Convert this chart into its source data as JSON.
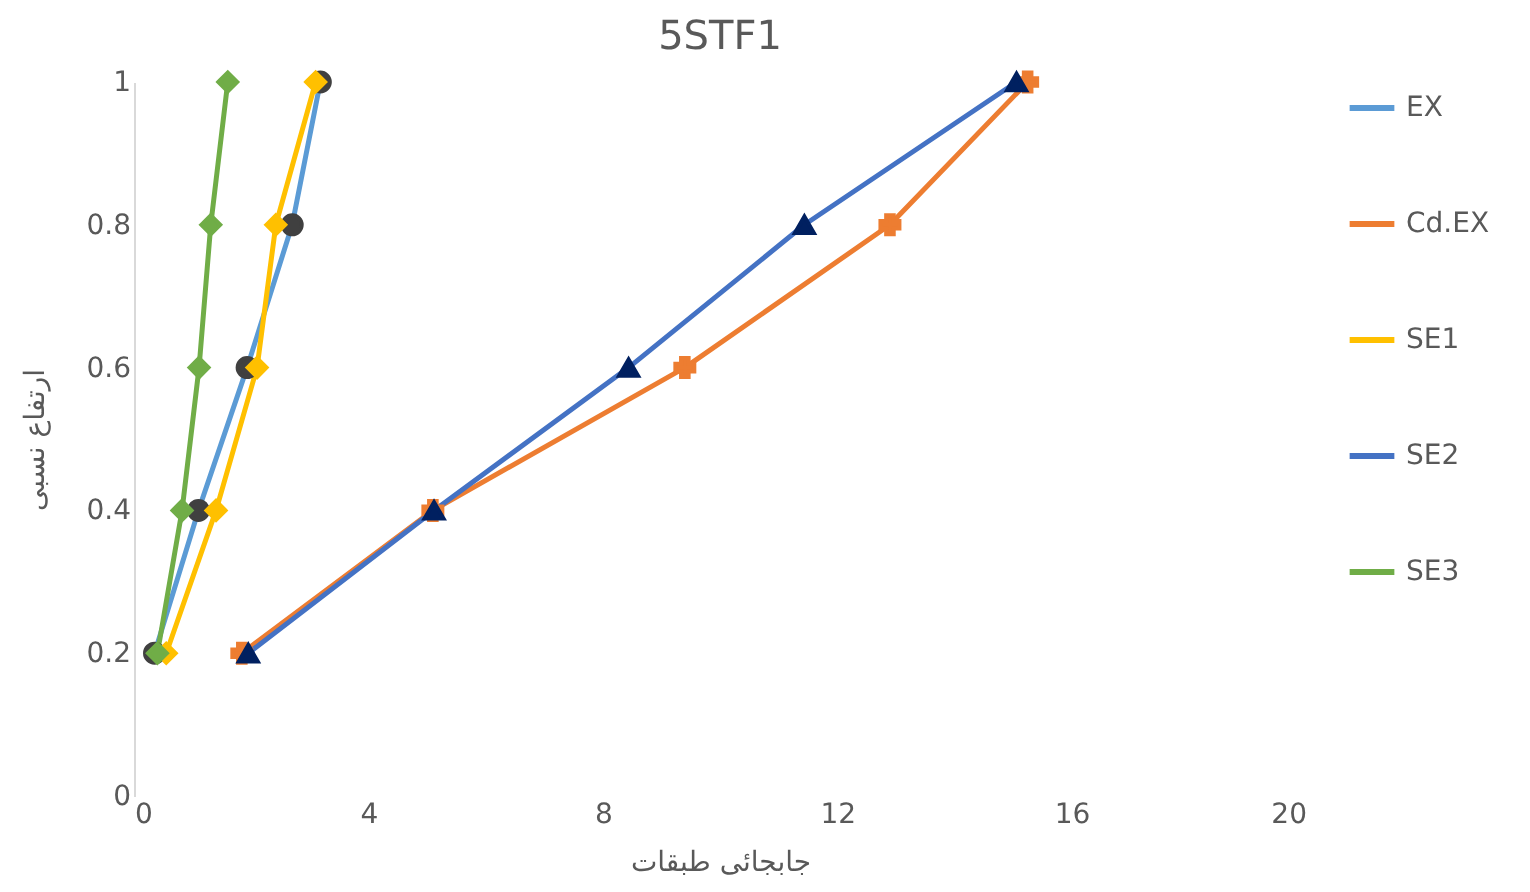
{
  "chart_data": {
    "type": "line",
    "title": "5STF1",
    "xlabel": "جابجائی طبقات",
    "ylabel": "ارتفاع نسبی",
    "xlim": [
      0,
      20
    ],
    "xticks": [
      0,
      4,
      8,
      12,
      16,
      20
    ],
    "ylim": [
      0,
      1
    ],
    "yticks": [
      0,
      0.2,
      0.4,
      0.6,
      0.8,
      1
    ],
    "grid": false,
    "legend": "right",
    "line_style": "solid",
    "series": [
      {
        "name": "EX",
        "color": "#5b9bd5",
        "marker": "circle",
        "colors": [
          "#404040",
          "#404040",
          "#404040",
          "#404040",
          "#404040"
        ],
        "x": [
          0.35,
          1.1,
          1.93,
          2.7,
          3.18
        ],
        "values": [
          0.2,
          0.4,
          0.6,
          0.8,
          1
        ]
      },
      {
        "name": "Cd.EX",
        "color": "#ed7d31",
        "marker": "cross",
        "x": [
          1.84,
          5.1,
          9.4,
          12.9,
          15.25
        ],
        "values": [
          0.2,
          0.4,
          0.6,
          0.8,
          1
        ]
      },
      {
        "name": "SE1",
        "color": "#ffc000",
        "marker": "diamond",
        "x": [
          0.55,
          1.4,
          2.1,
          2.42,
          3.1
        ],
        "values": [
          0.2,
          0.4,
          0.6,
          0.8,
          1
        ]
      },
      {
        "name": "SE2",
        "color": "#4472c4",
        "marker": "triangle",
        "colors": [
          "#002060",
          "#002060",
          "#002060",
          "#002060",
          "#002060"
        ],
        "x": [
          1.95,
          5.12,
          8.44,
          11.44,
          15.06
        ],
        "values": [
          0.2,
          0.4,
          0.6,
          0.8,
          1
        ]
      },
      {
        "name": "SE3",
        "color": "#70ad47",
        "marker": "diamond",
        "x": [
          0.4,
          0.82,
          1.11,
          1.31,
          1.6
        ],
        "values": [
          0.2,
          0.4,
          0.6,
          0.8,
          1
        ]
      }
    ]
  }
}
